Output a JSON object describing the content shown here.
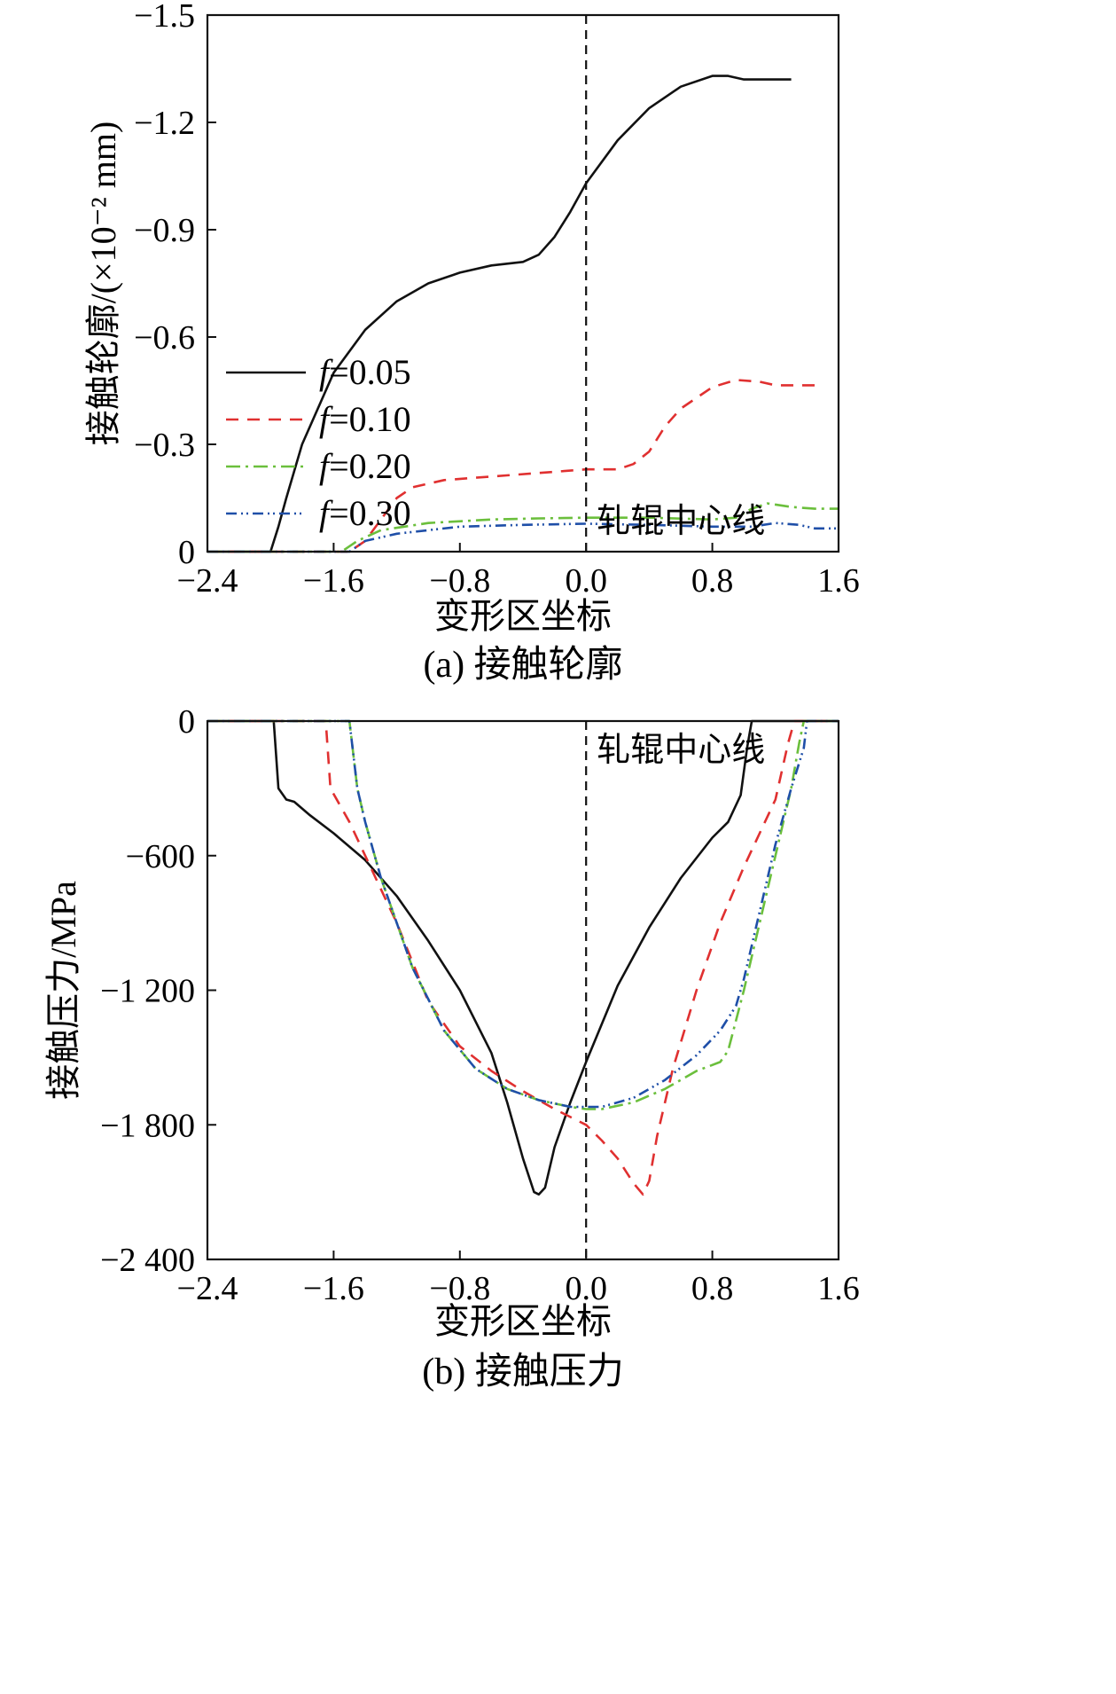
{
  "chart_data": [
    {
      "type": "line",
      "caption": "(a) 接触轮廓",
      "xlabel": "变形区坐标",
      "ylabel": "接触轮廓/(×10⁻² mm)",
      "xlim": [
        -2.4,
        1.6
      ],
      "ylim": [
        -1.5,
        0
      ],
      "x_ticks": [
        -2.4,
        -1.6,
        -0.8,
        0.0,
        0.8,
        1.6
      ],
      "x_tick_labels": [
        "−2.4",
        "−1.6",
        "−0.8",
        "0.0",
        "0.8",
        "1.6"
      ],
      "y_ticks": [
        0,
        -0.3,
        -0.6,
        -0.9,
        -1.2,
        -1.5
      ],
      "y_tick_labels": [
        "0",
        "−0.3",
        "−0.6",
        "−0.9",
        "−1.2",
        "−1.5"
      ],
      "centerline_x": 0,
      "centerline_label": "轧辊中心线",
      "legend": {
        "placement": "lower-left"
      },
      "series": [
        {
          "name": "f=0.05",
          "name_var": "f",
          "name_val": "=0.05",
          "color": "#111111",
          "dash": "none",
          "points": [
            [
              -2.4,
              0
            ],
            [
              -2.0,
              0
            ],
            [
              -1.95,
              -0.07
            ],
            [
              -1.9,
              -0.15
            ],
            [
              -1.8,
              -0.3
            ],
            [
              -1.6,
              -0.5
            ],
            [
              -1.4,
              -0.62
            ],
            [
              -1.2,
              -0.7
            ],
            [
              -1.0,
              -0.75
            ],
            [
              -0.8,
              -0.78
            ],
            [
              -0.6,
              -0.8
            ],
            [
              -0.4,
              -0.81
            ],
            [
              -0.3,
              -0.83
            ],
            [
              -0.2,
              -0.88
            ],
            [
              -0.1,
              -0.95
            ],
            [
              0.0,
              -1.03
            ],
            [
              0.2,
              -1.15
            ],
            [
              0.4,
              -1.24
            ],
            [
              0.6,
              -1.3
            ],
            [
              0.8,
              -1.33
            ],
            [
              0.9,
              -1.33
            ],
            [
              1.0,
              -1.32
            ],
            [
              1.3,
              -1.32
            ]
          ]
        },
        {
          "name": "f=0.10",
          "name_var": "f",
          "name_val": "=0.10",
          "color": "#e03030",
          "dash": "14,10",
          "points": [
            [
              -2.4,
              0
            ],
            [
              -1.5,
              0
            ],
            [
              -1.4,
              -0.03
            ],
            [
              -1.3,
              -0.09
            ],
            [
              -1.2,
              -0.15
            ],
            [
              -1.1,
              -0.18
            ],
            [
              -0.9,
              -0.2
            ],
            [
              -0.6,
              -0.21
            ],
            [
              -0.3,
              -0.22
            ],
            [
              0.0,
              -0.23
            ],
            [
              0.2,
              -0.23
            ],
            [
              0.3,
              -0.245
            ],
            [
              0.4,
              -0.28
            ],
            [
              0.5,
              -0.35
            ],
            [
              0.6,
              -0.4
            ],
            [
              0.8,
              -0.46
            ],
            [
              0.95,
              -0.48
            ],
            [
              1.1,
              -0.475
            ],
            [
              1.2,
              -0.465
            ],
            [
              1.45,
              -0.465
            ]
          ]
        },
        {
          "name": "f=0.20",
          "name_var": "f",
          "name_val": "=0.20",
          "color": "#6bbf3c",
          "dash": "16,6,3,6",
          "points": [
            [
              -2.4,
              0
            ],
            [
              -1.65,
              0
            ],
            [
              -1.55,
              0
            ],
            [
              -1.45,
              -0.03
            ],
            [
              -1.3,
              -0.06
            ],
            [
              -1.0,
              -0.08
            ],
            [
              -0.6,
              -0.09
            ],
            [
              -0.3,
              -0.093
            ],
            [
              0.0,
              -0.095
            ],
            [
              0.4,
              -0.095
            ],
            [
              0.8,
              -0.09
            ],
            [
              0.95,
              -0.095
            ],
            [
              1.05,
              -0.12
            ],
            [
              1.15,
              -0.135
            ],
            [
              1.3,
              -0.125
            ],
            [
              1.45,
              -0.12
            ],
            [
              1.6,
              -0.12
            ]
          ]
        },
        {
          "name": "f=0.30",
          "name_var": "f",
          "name_val": "=0.30",
          "color": "#1f4fa8",
          "dash": "12,5,2,4,2,5",
          "points": [
            [
              -2.4,
              0
            ],
            [
              -1.65,
              0
            ],
            [
              -1.5,
              0
            ],
            [
              -1.4,
              -0.03
            ],
            [
              -1.2,
              -0.05
            ],
            [
              -0.8,
              -0.07
            ],
            [
              -0.4,
              -0.075
            ],
            [
              0.0,
              -0.078
            ],
            [
              0.4,
              -0.075
            ],
            [
              0.8,
              -0.07
            ],
            [
              1.05,
              -0.07
            ],
            [
              1.2,
              -0.08
            ],
            [
              1.35,
              -0.075
            ],
            [
              1.45,
              -0.065
            ],
            [
              1.6,
              -0.065
            ]
          ]
        }
      ]
    },
    {
      "type": "line",
      "caption": "(b) 接触压力",
      "xlabel": "变形区坐标",
      "ylabel": "接触压力/MPa",
      "xlim": [
        -2.4,
        1.6
      ],
      "ylim": [
        0,
        -2400
      ],
      "x_ticks": [
        -2.4,
        -1.6,
        -0.8,
        0.0,
        0.8,
        1.6
      ],
      "x_tick_labels": [
        "−2.4",
        "−1.6",
        "−0.8",
        "0.0",
        "0.8",
        "1.6"
      ],
      "y_ticks": [
        -2400,
        -1800,
        -1200,
        -600,
        0
      ],
      "y_tick_labels": [
        "−2 400",
        "−1 800",
        "−1 200",
        "−600",
        "0"
      ],
      "centerline_x": 0,
      "centerline_label": "轧辊中心线",
      "series": [
        {
          "name": "f=0.05",
          "color": "#111111",
          "dash": "none",
          "points": [
            [
              -2.4,
              0
            ],
            [
              -1.98,
              0
            ],
            [
              -1.95,
              -300
            ],
            [
              -1.9,
              -350
            ],
            [
              -1.85,
              -360
            ],
            [
              -1.75,
              -420
            ],
            [
              -1.6,
              -500
            ],
            [
              -1.4,
              -620
            ],
            [
              -1.2,
              -780
            ],
            [
              -1.0,
              -980
            ],
            [
              -0.8,
              -1200
            ],
            [
              -0.6,
              -1480
            ],
            [
              -0.5,
              -1700
            ],
            [
              -0.4,
              -1950
            ],
            [
              -0.33,
              -2100
            ],
            [
              -0.3,
              -2110
            ],
            [
              -0.26,
              -2080
            ],
            [
              -0.2,
              -1900
            ],
            [
              -0.1,
              -1700
            ],
            [
              0.0,
              -1520
            ],
            [
              0.2,
              -1180
            ],
            [
              0.4,
              -920
            ],
            [
              0.6,
              -700
            ],
            [
              0.8,
              -520
            ],
            [
              0.9,
              -450
            ],
            [
              0.98,
              -330
            ],
            [
              1.02,
              -120
            ],
            [
              1.05,
              0
            ],
            [
              1.6,
              0
            ]
          ]
        },
        {
          "name": "f=0.10",
          "color": "#e03030",
          "dash": "14,10",
          "points": [
            [
              -2.4,
              0
            ],
            [
              -1.65,
              0
            ],
            [
              -1.62,
              -300
            ],
            [
              -1.5,
              -450
            ],
            [
              -1.4,
              -600
            ],
            [
              -1.2,
              -900
            ],
            [
              -1.0,
              -1250
            ],
            [
              -0.8,
              -1450
            ],
            [
              -0.6,
              -1560
            ],
            [
              -0.4,
              -1650
            ],
            [
              -0.2,
              -1730
            ],
            [
              0.0,
              -1800
            ],
            [
              0.1,
              -1870
            ],
            [
              0.2,
              -1950
            ],
            [
              0.3,
              -2060
            ],
            [
              0.36,
              -2110
            ],
            [
              0.4,
              -2050
            ],
            [
              0.45,
              -1850
            ],
            [
              0.55,
              -1550
            ],
            [
              0.7,
              -1200
            ],
            [
              0.85,
              -900
            ],
            [
              1.0,
              -650
            ],
            [
              1.1,
              -500
            ],
            [
              1.2,
              -350
            ],
            [
              1.28,
              -100
            ],
            [
              1.32,
              0
            ],
            [
              1.6,
              0
            ]
          ]
        },
        {
          "name": "f=0.20",
          "color": "#6bbf3c",
          "dash": "16,6,3,6",
          "points": [
            [
              -2.4,
              0
            ],
            [
              -1.5,
              0
            ],
            [
              -1.45,
              -300
            ],
            [
              -1.4,
              -450
            ],
            [
              -1.3,
              -700
            ],
            [
              -1.1,
              -1100
            ],
            [
              -0.9,
              -1380
            ],
            [
              -0.7,
              -1550
            ],
            [
              -0.5,
              -1640
            ],
            [
              -0.3,
              -1690
            ],
            [
              -0.1,
              -1720
            ],
            [
              0.0,
              -1730
            ],
            [
              0.1,
              -1730
            ],
            [
              0.3,
              -1700
            ],
            [
              0.5,
              -1640
            ],
            [
              0.7,
              -1560
            ],
            [
              0.85,
              -1520
            ],
            [
              0.9,
              -1470
            ],
            [
              1.0,
              -1200
            ],
            [
              1.1,
              -900
            ],
            [
              1.2,
              -600
            ],
            [
              1.3,
              -300
            ],
            [
              1.35,
              -100
            ],
            [
              1.38,
              0
            ],
            [
              1.6,
              0
            ]
          ]
        },
        {
          "name": "f=0.30",
          "color": "#1f4fa8",
          "dash": "12,5,2,4,2,5",
          "points": [
            [
              -2.4,
              0
            ],
            [
              -1.5,
              0
            ],
            [
              -1.45,
              -300
            ],
            [
              -1.4,
              -450
            ],
            [
              -1.3,
              -700
            ],
            [
              -1.1,
              -1100
            ],
            [
              -0.9,
              -1380
            ],
            [
              -0.7,
              -1550
            ],
            [
              -0.5,
              -1640
            ],
            [
              -0.3,
              -1690
            ],
            [
              -0.1,
              -1720
            ],
            [
              0.0,
              -1720
            ],
            [
              0.1,
              -1720
            ],
            [
              0.3,
              -1680
            ],
            [
              0.5,
              -1600
            ],
            [
              0.7,
              -1490
            ],
            [
              0.85,
              -1380
            ],
            [
              0.95,
              -1270
            ],
            [
              1.0,
              -1150
            ],
            [
              1.1,
              -850
            ],
            [
              1.2,
              -550
            ],
            [
              1.3,
              -300
            ],
            [
              1.38,
              -120
            ],
            [
              1.4,
              0
            ],
            [
              1.6,
              0
            ]
          ]
        }
      ]
    }
  ]
}
